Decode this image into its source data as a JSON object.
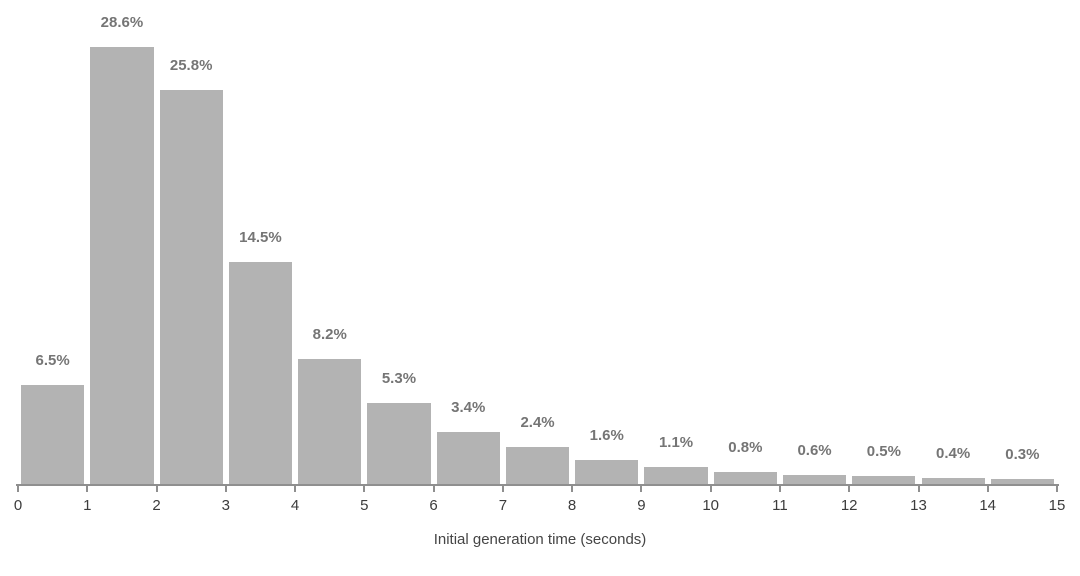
{
  "chart_data": {
    "type": "bar",
    "subtype": "histogram",
    "title": "",
    "xlabel": "Initial generation time (seconds)",
    "ylabel": "",
    "categories": [
      "0-1",
      "1-2",
      "2-3",
      "3-4",
      "4-5",
      "5-6",
      "6-7",
      "7-8",
      "8-9",
      "9-10",
      "10-11",
      "11-12",
      "12-13",
      "13-14",
      "14-15"
    ],
    "values": [
      6.5,
      28.6,
      25.8,
      14.5,
      8.2,
      5.3,
      3.4,
      2.4,
      1.6,
      1.1,
      0.8,
      0.6,
      0.5,
      0.4,
      0.3
    ],
    "bar_labels": [
      "6.5%",
      "28.6%",
      "25.8%",
      "14.5%",
      "8.2%",
      "5.3%",
      "3.4%",
      "2.4%",
      "1.6%",
      "1.1%",
      "0.8%",
      "0.6%",
      "0.5%",
      "0.4%",
      "0.3%"
    ],
    "x_tick_labels": [
      "0",
      "1",
      "2",
      "3",
      "4",
      "5",
      "6",
      "7",
      "8",
      "9",
      "10",
      "11",
      "12",
      "13",
      "14",
      "15"
    ],
    "xlim": [
      0,
      15
    ],
    "ylim": [
      0,
      30
    ],
    "grid": false,
    "legend": "none",
    "bar_color": "#b3b3b3",
    "bar_label_color": "#757575",
    "axis_color": "#8f8f8f",
    "tick_label_color": "#3c3c3c",
    "axis_title_color": "#454545"
  }
}
